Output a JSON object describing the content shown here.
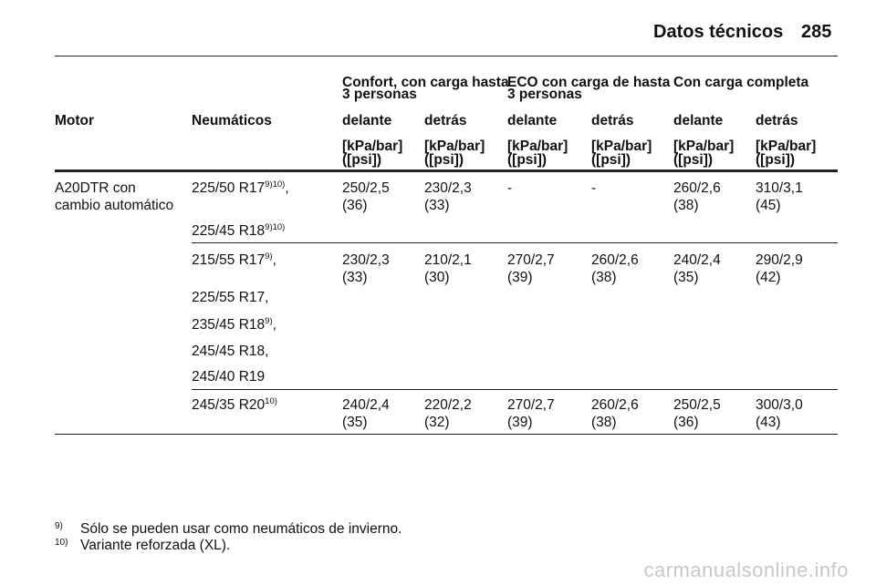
{
  "header": {
    "title": "Datos técnicos",
    "page": "285"
  },
  "table": {
    "groups": [
      {
        "lines": [
          "Confort, con carga hasta",
          "3 personas"
        ]
      },
      {
        "lines": [
          "ECO con carga de hasta",
          "3 personas"
        ]
      },
      {
        "lines": [
          "Con carga completa"
        ]
      }
    ],
    "columns": [
      "Motor",
      "Neumáticos",
      "delante",
      "detrás",
      "delante",
      "detrás",
      "delante",
      "detrás"
    ],
    "units": [
      [
        "[kPa/bar]",
        "([psi])"
      ],
      [
        "[kPa/bar]",
        "([psi])"
      ],
      [
        "[kPa/bar]",
        "([psi])"
      ],
      [
        "[kPa/bar]",
        "([psi])"
      ],
      [
        "[kPa/bar]",
        "([psi])"
      ],
      [
        "[kPa/bar]",
        "([psi])"
      ]
    ],
    "rows": [
      {
        "motor": [
          "A20DTR con",
          "cambio automático"
        ],
        "tires": [
          {
            "size": "225/50 R17",
            "notes": "9)10)",
            "punct": ","
          },
          {
            "size": "225/45 R18",
            "notes": "9)10)"
          }
        ],
        "values": [
          [
            "250/2,5",
            "(36)"
          ],
          [
            "230/2,3",
            "(33)"
          ],
          [
            "-"
          ],
          [
            "-"
          ],
          [
            "260/2,6",
            "(38)"
          ],
          [
            "310/3,1",
            "(45)"
          ]
        ]
      },
      {
        "tires": [
          {
            "size": "215/55 R17",
            "notes": "9)",
            "punct": ","
          },
          {
            "size": "225/55 R17,"
          },
          {
            "size": "235/45 R18",
            "notes": "9)",
            "punct": ","
          },
          {
            "size": "245/45 R18,"
          },
          {
            "size": "245/40 R19"
          }
        ],
        "values": [
          [
            "230/2,3",
            "(33)"
          ],
          [
            "210/2,1",
            "(30)"
          ],
          [
            "270/2,7",
            "(39)"
          ],
          [
            "260/2,6",
            "(38)"
          ],
          [
            "240/2,4",
            "(35)"
          ],
          [
            "290/2,9",
            "(42)"
          ]
        ]
      },
      {
        "tires": [
          {
            "size": "245/35 R20",
            "notes": "10)"
          }
        ],
        "values": [
          [
            "240/2,4",
            "(35)"
          ],
          [
            "220/2,2",
            "(32)"
          ],
          [
            "270/2,7",
            "(39)"
          ],
          [
            "260/2,6",
            "(38)"
          ],
          [
            "250/2,5",
            "(36)"
          ],
          [
            "300/3,0",
            "(43)"
          ]
        ]
      }
    ]
  },
  "footnotes": [
    {
      "mark": "9)",
      "text": "Sólo se pueden usar como neumáticos de invierno."
    },
    {
      "mark": "10)",
      "text": "Variante reforzada (XL)."
    }
  ],
  "watermark": "carmanualsonline.info"
}
